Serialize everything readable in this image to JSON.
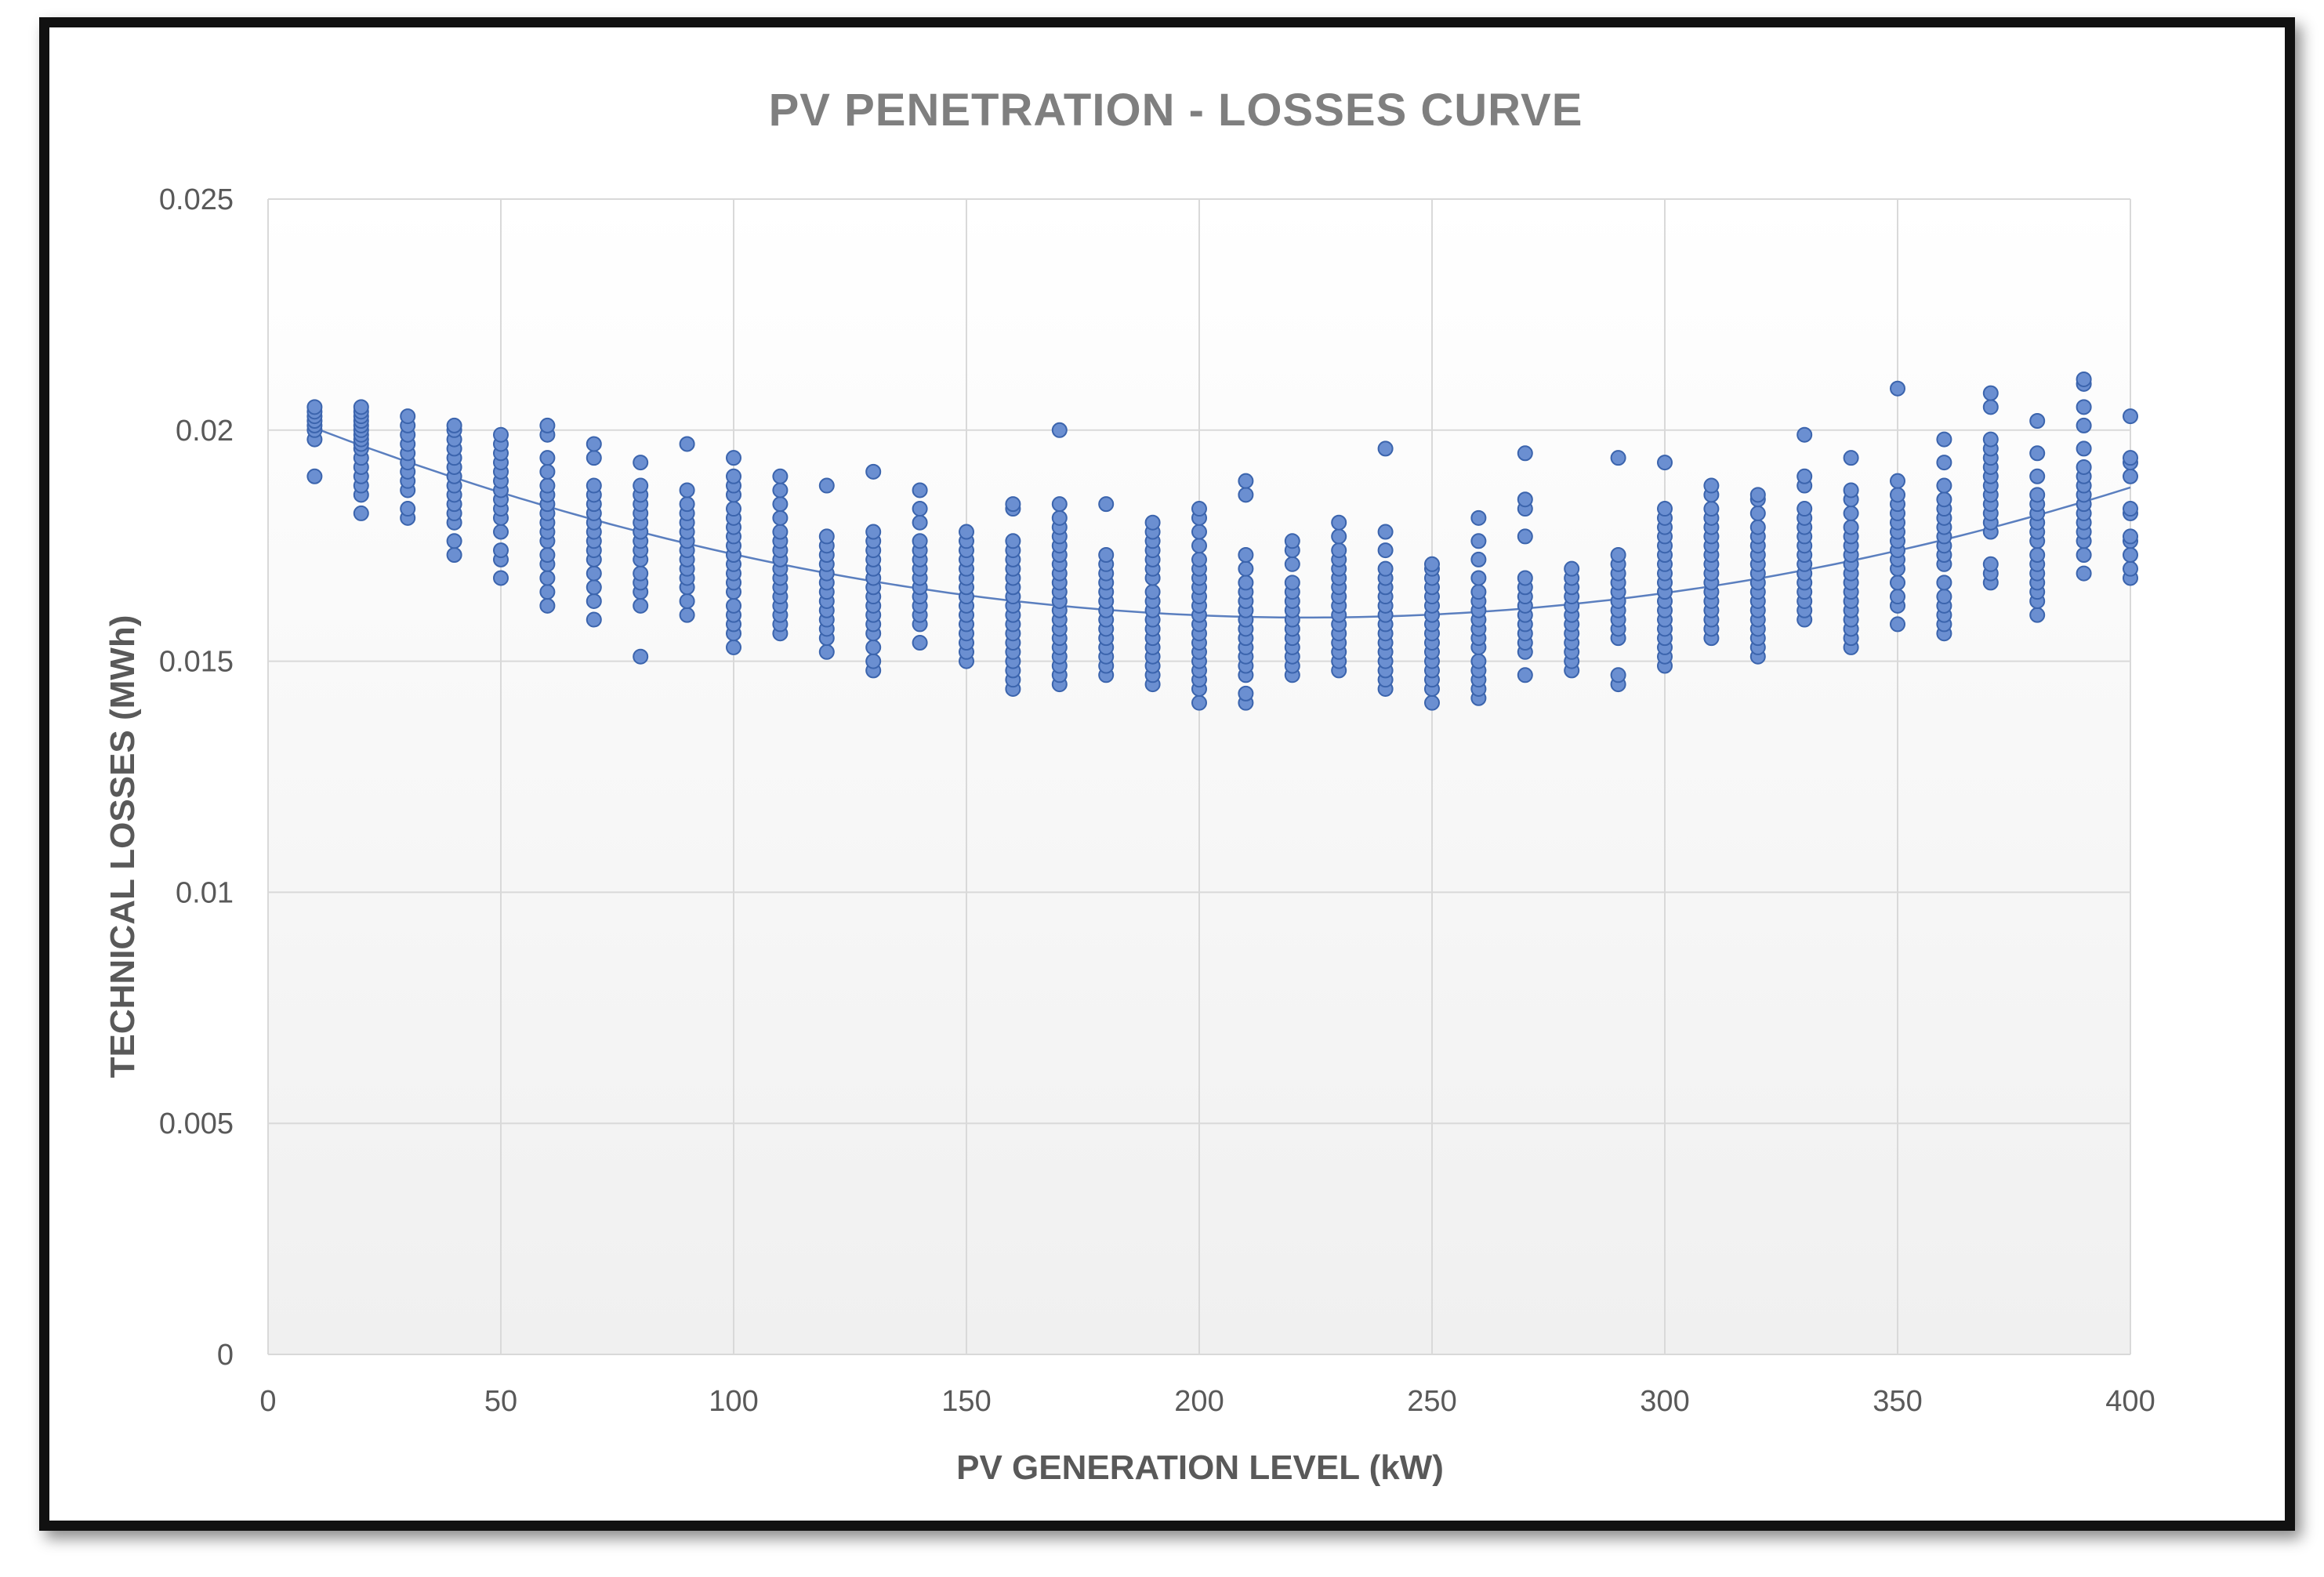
{
  "chart_data": {
    "type": "scatter",
    "title": "PV PENETRATION  - LOSSES  CURVE",
    "xlabel": "PV GENERATION  LEVEL (kW)",
    "ylabel": "TECHNICAL LOSSES (MWh)",
    "xlim": [
      0,
      400
    ],
    "ylim": [
      0,
      0.025
    ],
    "xticks": [
      0,
      50,
      100,
      150,
      200,
      250,
      300,
      350,
      400
    ],
    "yticks": [
      0,
      0.005,
      0.01,
      0.015,
      0.02,
      0.025
    ],
    "ytick_labels": [
      "0",
      "0.005",
      "0.01",
      "0.015",
      "0.02",
      "0.025"
    ],
    "grid": true,
    "legend": "none",
    "colors": {
      "marker_fill": "#6b8fd1",
      "marker_edge": "#3b64ad",
      "trendline": "#5b7fbf"
    },
    "trendline": {
      "type": "polynomial",
      "degree": 2,
      "x": [
        10,
        100,
        200,
        250,
        300,
        400
      ],
      "y": [
        0.02,
        0.0174,
        0.016,
        0.016,
        0.0164,
        0.0188
      ]
    },
    "series": [
      {
        "name": "Technical losses",
        "points": [
          {
            "x": 10,
            "ys": [
              0.019,
              0.0198,
              0.02,
              0.0201,
              0.0202,
              0.0203,
              0.0204,
              0.0205
            ]
          },
          {
            "x": 20,
            "ys": [
              0.0182,
              0.0186,
              0.0188,
              0.019,
              0.0192,
              0.0194,
              0.0196,
              0.0197,
              0.0198,
              0.0199,
              0.02,
              0.0201,
              0.0202,
              0.0203,
              0.0204,
              0.0205
            ]
          },
          {
            "x": 30,
            "ys": [
              0.0181,
              0.0183,
              0.0187,
              0.0189,
              0.0191,
              0.0193,
              0.0195,
              0.0197,
              0.0199,
              0.0201,
              0.0203
            ]
          },
          {
            "x": 40,
            "ys": [
              0.0173,
              0.0176,
              0.018,
              0.0182,
              0.0184,
              0.0186,
              0.0188,
              0.019,
              0.0192,
              0.0194,
              0.0196,
              0.0198,
              0.02,
              0.0201
            ]
          },
          {
            "x": 50,
            "ys": [
              0.0168,
              0.0172,
              0.0174,
              0.0178,
              0.0181,
              0.0183,
              0.0185,
              0.0187,
              0.0189,
              0.0191,
              0.0193,
              0.0195,
              0.0197,
              0.0199
            ]
          },
          {
            "x": 60,
            "ys": [
              0.0162,
              0.0165,
              0.0168,
              0.0171,
              0.0173,
              0.0176,
              0.0178,
              0.018,
              0.0182,
              0.0184,
              0.0186,
              0.0188,
              0.0191,
              0.0194,
              0.0199,
              0.0201
            ]
          },
          {
            "x": 70,
            "ys": [
              0.0159,
              0.0163,
              0.0166,
              0.0169,
              0.0172,
              0.0174,
              0.0176,
              0.0178,
              0.018,
              0.0182,
              0.0184,
              0.0186,
              0.0188,
              0.0194,
              0.0197
            ]
          },
          {
            "x": 80,
            "ys": [
              0.0151,
              0.0162,
              0.0165,
              0.0167,
              0.0169,
              0.0172,
              0.0174,
              0.0176,
              0.0178,
              0.018,
              0.0182,
              0.0184,
              0.0186,
              0.0188,
              0.0193
            ]
          },
          {
            "x": 90,
            "ys": [
              0.016,
              0.0163,
              0.0166,
              0.0168,
              0.017,
              0.0172,
              0.0174,
              0.0176,
              0.0178,
              0.018,
              0.0182,
              0.0184,
              0.0187,
              0.0197
            ]
          },
          {
            "x": 100,
            "ys": [
              0.0153,
              0.0156,
              0.0158,
              0.016,
              0.0162,
              0.0165,
              0.0167,
              0.0169,
              0.0171,
              0.0173,
              0.0175,
              0.0177,
              0.0179,
              0.0181,
              0.0183,
              0.0186,
              0.0188,
              0.019,
              0.0194
            ]
          },
          {
            "x": 110,
            "ys": [
              0.0156,
              0.0158,
              0.016,
              0.0162,
              0.0164,
              0.0166,
              0.0168,
              0.017,
              0.0172,
              0.0174,
              0.0176,
              0.0178,
              0.0181,
              0.0184,
              0.0187,
              0.019
            ]
          },
          {
            "x": 120,
            "ys": [
              0.0152,
              0.0155,
              0.0157,
              0.0159,
              0.0161,
              0.0163,
              0.0165,
              0.0167,
              0.0169,
              0.0171,
              0.0173,
              0.0175,
              0.0177,
              0.0188
            ]
          },
          {
            "x": 130,
            "ys": [
              0.0148,
              0.015,
              0.0153,
              0.0156,
              0.0158,
              0.016,
              0.0162,
              0.0164,
              0.0166,
              0.0168,
              0.017,
              0.0172,
              0.0174,
              0.0176,
              0.0178,
              0.0191
            ]
          },
          {
            "x": 140,
            "ys": [
              0.0154,
              0.0158,
              0.016,
              0.0162,
              0.0164,
              0.0166,
              0.0168,
              0.017,
              0.0172,
              0.0174,
              0.0176,
              0.018,
              0.0183,
              0.0187
            ]
          },
          {
            "x": 150,
            "ys": [
              0.015,
              0.0152,
              0.0154,
              0.0156,
              0.0158,
              0.016,
              0.0162,
              0.0164,
              0.0166,
              0.0168,
              0.017,
              0.0172,
              0.0174,
              0.0176,
              0.0178
            ]
          },
          {
            "x": 160,
            "ys": [
              0.0144,
              0.0146,
              0.0148,
              0.015,
              0.0152,
              0.0154,
              0.0156,
              0.0158,
              0.016,
              0.0162,
              0.0164,
              0.0166,
              0.0168,
              0.017,
              0.0172,
              0.0174,
              0.0176,
              0.0183,
              0.0184
            ]
          },
          {
            "x": 170,
            "ys": [
              0.0145,
              0.0147,
              0.0149,
              0.0151,
              0.0153,
              0.0155,
              0.0157,
              0.0159,
              0.0161,
              0.0163,
              0.0165,
              0.0167,
              0.0169,
              0.0171,
              0.0173,
              0.0175,
              0.0177,
              0.0179,
              0.0181,
              0.0184,
              0.02
            ]
          },
          {
            "x": 180,
            "ys": [
              0.0147,
              0.0149,
              0.0151,
              0.0153,
              0.0155,
              0.0157,
              0.0159,
              0.0161,
              0.0163,
              0.0165,
              0.0167,
              0.0169,
              0.0171,
              0.0173,
              0.0184
            ]
          },
          {
            "x": 190,
            "ys": [
              0.0145,
              0.0147,
              0.0149,
              0.0151,
              0.0153,
              0.0155,
              0.0157,
              0.0159,
              0.0161,
              0.0163,
              0.0165,
              0.0168,
              0.017,
              0.0172,
              0.0174,
              0.0176,
              0.0178,
              0.018
            ]
          },
          {
            "x": 200,
            "ys": [
              0.0141,
              0.0144,
              0.0146,
              0.0148,
              0.015,
              0.0152,
              0.0154,
              0.0156,
              0.0158,
              0.016,
              0.0162,
              0.0164,
              0.0166,
              0.0168,
              0.017,
              0.0172,
              0.0175,
              0.0178,
              0.0181,
              0.0183
            ]
          },
          {
            "x": 210,
            "ys": [
              0.0141,
              0.0143,
              0.0147,
              0.0149,
              0.0151,
              0.0153,
              0.0155,
              0.0157,
              0.0159,
              0.0161,
              0.0163,
              0.0165,
              0.0167,
              0.017,
              0.0173,
              0.0186,
              0.0189
            ]
          },
          {
            "x": 220,
            "ys": [
              0.0147,
              0.0149,
              0.0151,
              0.0153,
              0.0155,
              0.0157,
              0.0159,
              0.0161,
              0.0163,
              0.0165,
              0.0167,
              0.0171,
              0.0174,
              0.0176
            ]
          },
          {
            "x": 230,
            "ys": [
              0.0148,
              0.015,
              0.0152,
              0.0154,
              0.0156,
              0.0158,
              0.016,
              0.0162,
              0.0164,
              0.0166,
              0.0168,
              0.017,
              0.0172,
              0.0174,
              0.0177,
              0.018
            ]
          },
          {
            "x": 240,
            "ys": [
              0.0144,
              0.0146,
              0.0148,
              0.015,
              0.0152,
              0.0154,
              0.0156,
              0.0158,
              0.016,
              0.0162,
              0.0164,
              0.0166,
              0.0168,
              0.017,
              0.0174,
              0.0178,
              0.0196
            ]
          },
          {
            "x": 250,
            "ys": [
              0.0141,
              0.0144,
              0.0146,
              0.0148,
              0.015,
              0.0152,
              0.0154,
              0.0156,
              0.0158,
              0.016,
              0.0162,
              0.0164,
              0.0166,
              0.0168,
              0.017,
              0.0171
            ]
          },
          {
            "x": 260,
            "ys": [
              0.0142,
              0.0144,
              0.0146,
              0.0148,
              0.015,
              0.0153,
              0.0155,
              0.0157,
              0.0159,
              0.0161,
              0.0163,
              0.0165,
              0.0168,
              0.0172,
              0.0176,
              0.0181
            ]
          },
          {
            "x": 270,
            "ys": [
              0.0147,
              0.0152,
              0.0154,
              0.0156,
              0.0158,
              0.016,
              0.0162,
              0.0164,
              0.0166,
              0.0168,
              0.0177,
              0.0183,
              0.0185,
              0.0195
            ]
          },
          {
            "x": 280,
            "ys": [
              0.0148,
              0.015,
              0.0152,
              0.0154,
              0.0156,
              0.0158,
              0.016,
              0.0162,
              0.0164,
              0.0166,
              0.0168,
              0.017
            ]
          },
          {
            "x": 290,
            "ys": [
              0.0145,
              0.0147,
              0.0155,
              0.0157,
              0.0159,
              0.0161,
              0.0163,
              0.0165,
              0.0167,
              0.0169,
              0.0171,
              0.0173,
              0.0194
            ]
          },
          {
            "x": 300,
            "ys": [
              0.0149,
              0.0151,
              0.0153,
              0.0155,
              0.0157,
              0.0159,
              0.0161,
              0.0163,
              0.0165,
              0.0167,
              0.0169,
              0.0171,
              0.0173,
              0.0175,
              0.0177,
              0.0179,
              0.0181,
              0.0183,
              0.0193
            ]
          },
          {
            "x": 310,
            "ys": [
              0.0155,
              0.0157,
              0.0159,
              0.0161,
              0.0163,
              0.0165,
              0.0167,
              0.0169,
              0.0171,
              0.0173,
              0.0175,
              0.0177,
              0.0179,
              0.0181,
              0.0183,
              0.0186,
              0.0188
            ]
          },
          {
            "x": 320,
            "ys": [
              0.0151,
              0.0153,
              0.0155,
              0.0157,
              0.0159,
              0.0161,
              0.0163,
              0.0165,
              0.0167,
              0.0169,
              0.0171,
              0.0173,
              0.0175,
              0.0177,
              0.0179,
              0.0182,
              0.0185,
              0.0186
            ]
          },
          {
            "x": 330,
            "ys": [
              0.0159,
              0.0161,
              0.0163,
              0.0165,
              0.0167,
              0.0169,
              0.0171,
              0.0173,
              0.0175,
              0.0177,
              0.0179,
              0.0181,
              0.0183,
              0.0188,
              0.019,
              0.0199
            ]
          },
          {
            "x": 340,
            "ys": [
              0.0153,
              0.0155,
              0.0157,
              0.0159,
              0.0161,
              0.0163,
              0.0165,
              0.0167,
              0.0169,
              0.0171,
              0.0173,
              0.0175,
              0.0177,
              0.0179,
              0.0182,
              0.0185,
              0.0187,
              0.0194
            ]
          },
          {
            "x": 350,
            "ys": [
              0.0158,
              0.0162,
              0.0164,
              0.0167,
              0.017,
              0.0172,
              0.0174,
              0.0176,
              0.0178,
              0.018,
              0.0182,
              0.0184,
              0.0186,
              0.0189,
              0.0209
            ]
          },
          {
            "x": 360,
            "ys": [
              0.0156,
              0.0158,
              0.016,
              0.0162,
              0.0164,
              0.0167,
              0.0171,
              0.0173,
              0.0175,
              0.0177,
              0.0179,
              0.0181,
              0.0183,
              0.0185,
              0.0188,
              0.0193,
              0.0198
            ]
          },
          {
            "x": 370,
            "ys": [
              0.0167,
              0.0169,
              0.0171,
              0.0178,
              0.018,
              0.0182,
              0.0184,
              0.0186,
              0.0188,
              0.019,
              0.0192,
              0.0194,
              0.0196,
              0.0198,
              0.0205,
              0.0208
            ]
          },
          {
            "x": 380,
            "ys": [
              0.016,
              0.0163,
              0.0165,
              0.0167,
              0.0169,
              0.0171,
              0.0173,
              0.0176,
              0.0178,
              0.018,
              0.0182,
              0.0184,
              0.0186,
              0.019,
              0.0195,
              0.0202
            ]
          },
          {
            "x": 390,
            "ys": [
              0.0169,
              0.0173,
              0.0176,
              0.0178,
              0.018,
              0.0182,
              0.0184,
              0.0186,
              0.0188,
              0.019,
              0.0192,
              0.0196,
              0.0201,
              0.0205,
              0.021,
              0.0211
            ]
          },
          {
            "x": 400,
            "ys": [
              0.0168,
              0.017,
              0.0173,
              0.0176,
              0.0177,
              0.0182,
              0.0183,
              0.019,
              0.0193,
              0.0194,
              0.0203
            ]
          }
        ]
      }
    ]
  }
}
